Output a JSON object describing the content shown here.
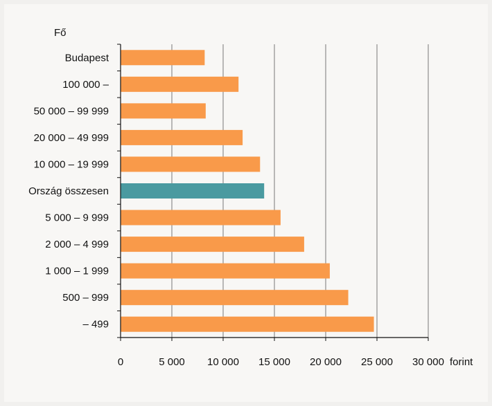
{
  "chart_data": {
    "type": "bar",
    "orientation": "horizontal",
    "category_axis_title": "Fő",
    "value_axis_unit": "forint",
    "categories": [
      "Budapest",
      "100 000 –",
      "50 000 – 99 999",
      "20 000 – 49 999",
      "10 000 – 19 999",
      "Ország összesen",
      "5 000 – 9 999",
      "2 000 – 4 999",
      "1 000 – 1 999",
      "500 – 999",
      "– 499"
    ],
    "values": [
      8200,
      11500,
      8300,
      11900,
      13600,
      14000,
      15600,
      17900,
      20400,
      22200,
      24700
    ],
    "highlight_category": "Ország összesen",
    "xlim": [
      0,
      30000
    ],
    "x_ticks": [
      0,
      5000,
      10000,
      15000,
      20000,
      25000,
      30000
    ],
    "x_tick_labels": [
      "0",
      "5 000",
      "10 000",
      "15 000",
      "20 000",
      "25 000",
      "30 000"
    ],
    "grid": "vertical",
    "colors": {
      "bar": "#f99a4a",
      "highlight": "#4a9aa0",
      "grid": "#777777",
      "axis": "#111111"
    }
  }
}
